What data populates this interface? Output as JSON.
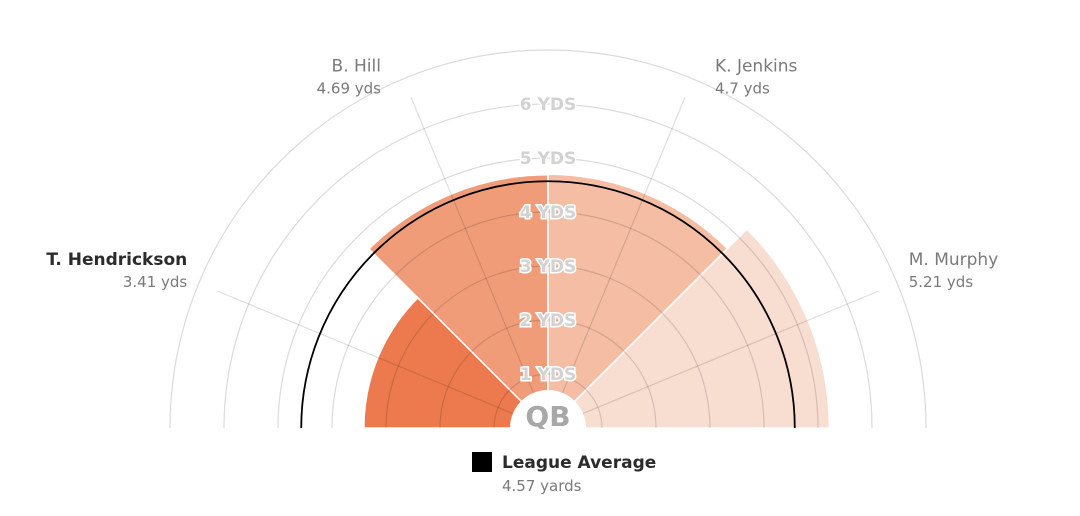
{
  "chart_data": {
    "type": "polar-area",
    "center_label": "QB",
    "rings": [
      "1 YDS",
      "2 YDS",
      "3 YDS",
      "4 YDS",
      "5 YDS",
      "6 YDS"
    ],
    "max": 6,
    "players": [
      {
        "name": "T. Hendrickson",
        "value": 3.41,
        "value_label": "3.41 yds",
        "color": "#ec7a4e",
        "bold": true
      },
      {
        "name": "B. Hill",
        "value": 4.69,
        "value_label": "4.69 yds",
        "color": "#f09c79",
        "bold": false
      },
      {
        "name": "K. Jenkins",
        "value": 4.7,
        "value_label": "4.7 yds",
        "color": "#f4bda4",
        "bold": false
      },
      {
        "name": "M. Murphy",
        "value": 5.21,
        "value_label": "5.21 yds",
        "color": "#f8ddd1",
        "bold": false
      }
    ],
    "league_average": {
      "label": "League Average",
      "value": 4.57,
      "value_label": "4.57 yards",
      "color": "#000000"
    }
  }
}
